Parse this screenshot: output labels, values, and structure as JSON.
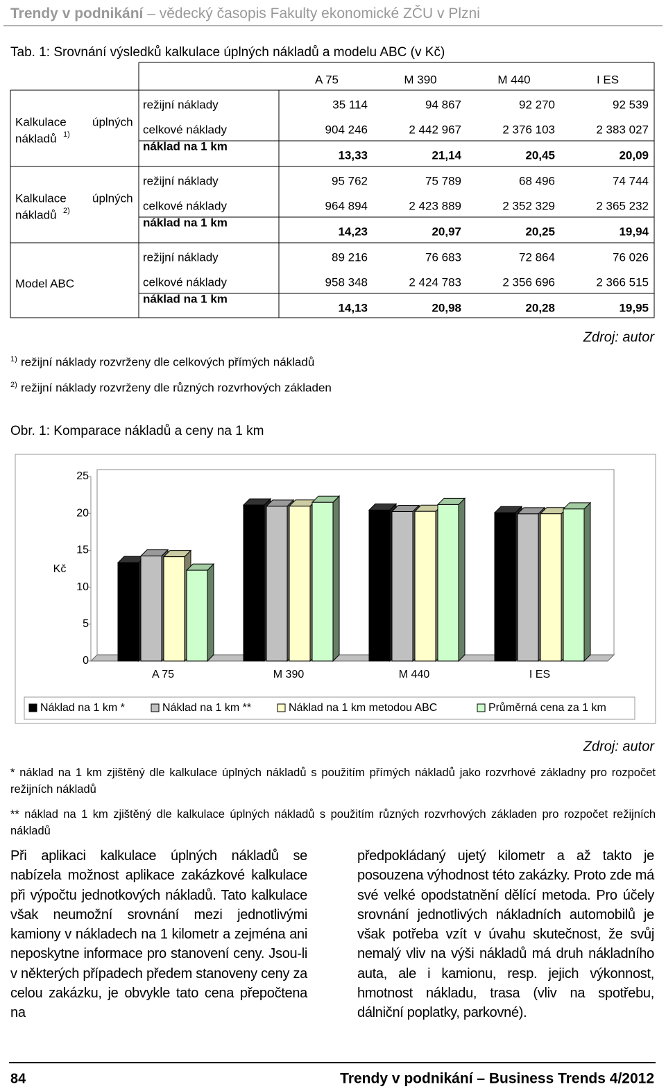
{
  "header": {
    "journal": "Trendy v podnikání",
    "subtitle": "– vědecký časopis Fakulty ekonomické ZČU v Plzni"
  },
  "table": {
    "title": "Tab. 1: Srovnání výsledků kalkulace úplných nákladů a modelu ABC (v Kč)",
    "columns": [
      "A 75",
      "M 390",
      "M 440",
      "I ES"
    ],
    "groups": [
      {
        "label_lines": [
          "Kalkulace",
          "nákladů"
        ],
        "label_note": "1)",
        "label_word": "úplných",
        "rows": [
          {
            "name": "režijní náklady",
            "values": [
              "35 114",
              "94 867",
              "92 270",
              "92 539"
            ]
          },
          {
            "name": "celkové náklady",
            "values": [
              "904 246",
              "2 442 967",
              "2 376 103",
              "2 383 027"
            ]
          },
          {
            "name": "náklad na 1 km",
            "values": [
              "13,33",
              "21,14",
              "20,45",
              "20,09"
            ]
          }
        ]
      },
      {
        "label_lines": [
          "Kalkulace",
          "nákladů"
        ],
        "label_note": "2)",
        "label_word": "úplných",
        "rows": [
          {
            "name": "režijní náklady",
            "values": [
              "95 762",
              "75 789",
              "68 496",
              "74 744"
            ]
          },
          {
            "name": "celkové náklady",
            "values": [
              "964 894",
              "2 423 889",
              "2 352 329",
              "2 365 232"
            ]
          },
          {
            "name": "náklad na 1 km",
            "values": [
              "14,23",
              "20,97",
              "20,25",
              "19,94"
            ]
          }
        ]
      },
      {
        "label_lines": [
          "Model ABC"
        ],
        "rows": [
          {
            "name": "režijní náklady",
            "values": [
              "89 216",
              "76 683",
              "72 864",
              "76 026"
            ]
          },
          {
            "name": "celkové náklady",
            "values": [
              "958 348",
              "2 424 783",
              "2 356 696",
              "2 366 515"
            ]
          },
          {
            "name": "náklad na 1 km",
            "values": [
              "14,13",
              "20,98",
              "20,28",
              "19,95"
            ]
          }
        ]
      }
    ],
    "source": "Zdroj: autor",
    "footnotes": [
      {
        "mark": "1)",
        "text": "režijní náklady rozvrženy dle celkových přímých nákladů"
      },
      {
        "mark": "2)",
        "text": "režijní náklady rozvrženy dle různých rozvrhových základen"
      }
    ]
  },
  "figure": {
    "title": "Obr. 1: Komparace nákladů a ceny na 1 km",
    "chart": {
      "type": "bar",
      "y_label": "Kč",
      "categories": [
        "A 75",
        "M 390",
        "M 440",
        "I ES"
      ],
      "ylim": [
        0,
        25
      ],
      "yticks": [
        0,
        5,
        10,
        15,
        20,
        25
      ],
      "series": [
        {
          "name": "Náklad na 1 km *",
          "color": "#000000",
          "values": [
            13.33,
            21.14,
            20.45,
            20.09
          ]
        },
        {
          "name": "Náklad na 1 km **",
          "color": "#c0c0c0",
          "values": [
            14.23,
            20.97,
            20.25,
            19.94
          ]
        },
        {
          "name": "Náklad na 1 km metodou ABC",
          "color": "#ffffcc",
          "values": [
            14.13,
            20.98,
            20.28,
            19.95
          ]
        },
        {
          "name": "Průměrná cena za 1 km",
          "color": "#ccffcc",
          "values": [
            12.3,
            21.5,
            21.2,
            20.6
          ]
        }
      ]
    },
    "source": "Zdroj: autor",
    "notes": [
      "* náklad na 1 km zjištěný dle kalkulace úplných nákladů s použitím přímých nákladů jako rozvrhové základny pro rozpočet režijních nákladů",
      "** náklad na 1 km zjištěný dle kalkulace úplných nákladů s použitím různých rozvrhových základen pro rozpočet režijních nákladů"
    ]
  },
  "body": {
    "left": "Při aplikaci kalkulace úplných nákladů se nabízela možnost aplikace zakázkové kalkulace při výpočtu jednotkových nákladů. Tato kalkulace však neumožní srovnání mezi jednotlivými kamiony v nákladech na 1 kilometr a zejména ani neposkytne informace pro stanovení ceny. Jsou-li v některých případech předem stanoveny ceny za celou zakázku, je obvykle tato cena přepočtena na",
    "right": "předpokládaný ujetý kilometr a až takto je posouzena výhodnost této zakázky. Proto zde má své velké opodstatnění dělící metoda. Pro účely srovnání jednotlivých nákladních automobilů je však potřeba vzít v úvahu skutečnost, že svůj nemalý vliv na výši nákladů má druh nákladního auta, ale i kamionu, resp. jejich výkonnost, hmotnost nákladu, trasa (vliv na spotřebu, dálniční poplatky, parkovné)."
  },
  "footer": {
    "page": "84",
    "journal": "Trendy v podnikání – Business Trends 4/2012"
  }
}
